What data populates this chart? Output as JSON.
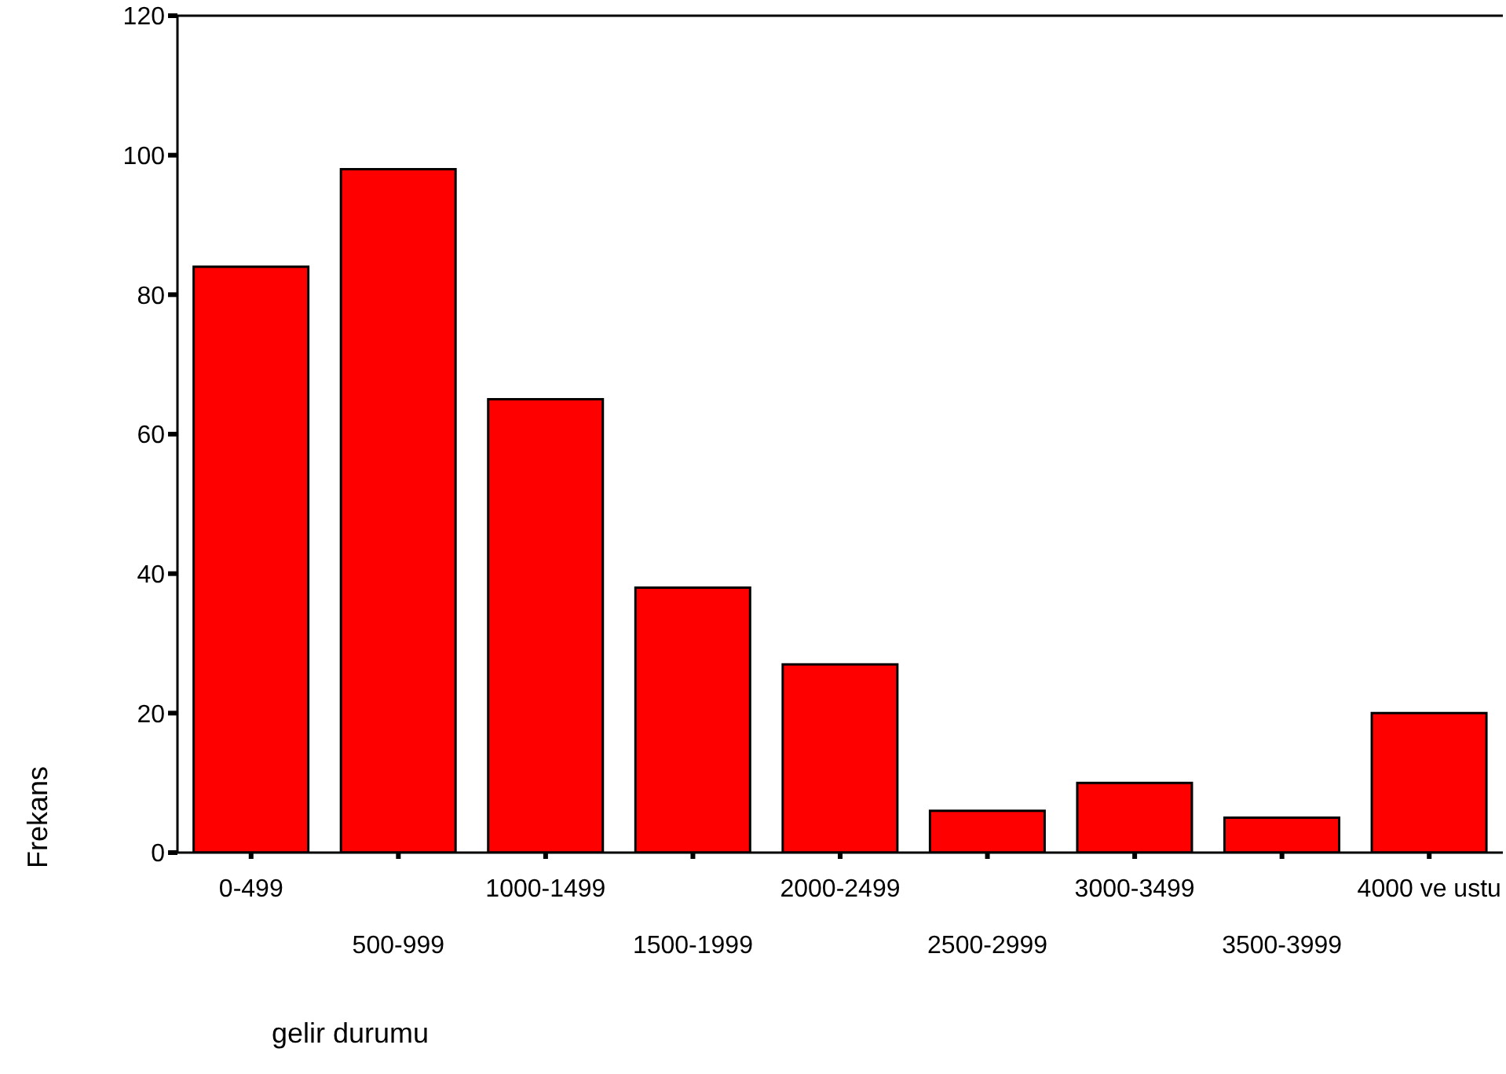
{
  "chart_data": {
    "type": "bar",
    "xlabel": "gelir durumu",
    "ylabel": "Frekans",
    "categories": [
      "0-499",
      "500-999",
      "1000-1499",
      "1500-1999",
      "2000-2499",
      "2500-2999",
      "3000-3499",
      "3500-3999",
      "4000 ve ustu"
    ],
    "values": [
      84,
      98,
      65,
      38,
      27,
      6,
      10,
      5,
      20
    ],
    "color": "#ff0000",
    "ylim": [
      0,
      120
    ],
    "yticks": [
      0,
      20,
      40,
      60,
      80,
      100,
      120
    ]
  }
}
